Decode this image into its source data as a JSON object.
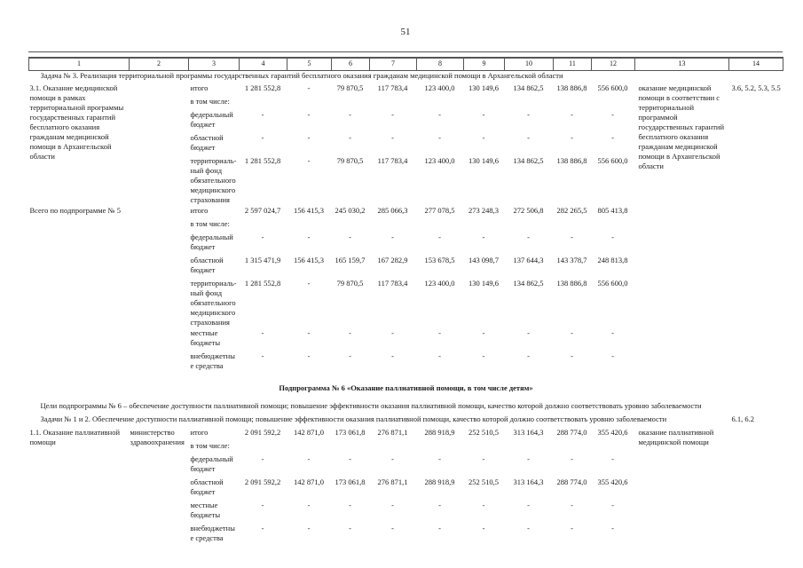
{
  "page": {
    "number": "51"
  },
  "table": {
    "rows": [
      {
        "name": "column-number-row",
        "cls": "hd-row",
        "cells": [
          {
            "t": "1"
          },
          {
            "t": "2"
          },
          {
            "t": "3"
          },
          {
            "t": "4"
          },
          {
            "t": "5"
          },
          {
            "t": "6"
          },
          {
            "t": "7"
          },
          {
            "t": "8"
          },
          {
            "t": "9"
          },
          {
            "t": "10"
          },
          {
            "t": "11"
          },
          {
            "t": "12"
          },
          {
            "t": "13"
          },
          {
            "t": "14"
          }
        ]
      },
      {
        "name": "task-3-row",
        "cells": [
          {
            "t": "Задача № 3. Реализация территориальной программы государственных гарантий бесплатного оказания гражданам медицинской помощи в Архангельской области",
            "colspan": 14,
            "cls": "span-line",
            "n": "task-3-heading"
          }
        ]
      },
      {
        "name": "row-3-1-itogo",
        "cells": [
          {
            "t": "3.1. Оказание медицинской помощи в рамках территориальной программы государственных гарантий бесплатного оказания гражданам медицинской помощи в Архангельской области",
            "rowspan": 5,
            "cls": "c1",
            "n": "measure-3-1-title"
          },
          {
            "t": "",
            "rowspan": 5,
            "n": "executor-cell"
          },
          {
            "t": "итого",
            "cls": "lbl",
            "n": "budget-source-label"
          },
          {
            "t": "1 281 552,8",
            "cls": "num"
          },
          {
            "t": "-",
            "cls": "num"
          },
          {
            "t": "79 870,5",
            "cls": "num"
          },
          {
            "t": "117 783,4",
            "cls": "num"
          },
          {
            "t": "123 400,0",
            "cls": "num"
          },
          {
            "t": "130 149,6",
            "cls": "num"
          },
          {
            "t": "134 862,5",
            "cls": "num"
          },
          {
            "t": "138 886,8",
            "cls": "num"
          },
          {
            "t": "556 600,0",
            "cls": "num"
          },
          {
            "t": "оказание медицинской помощи в соответствии с территориальной программой государственных гарантий бесплатного оказания гражданам медицинской помощи в Архангельской области",
            "rowspan": 5,
            "cls": "c13",
            "n": "expected-result-cell"
          },
          {
            "t": "3.6, 5.2, 5.3, 5.5",
            "rowspan": 5,
            "cls": "c14",
            "n": "indicator-ref-cell"
          }
        ]
      },
      {
        "name": "row-3-1-including",
        "cells": [
          {
            "t": "в том числе:",
            "cls": "lbl",
            "n": "budget-source-label"
          }
        ]
      },
      {
        "name": "row-3-1-federal",
        "cells": [
          {
            "t": "федеральный бюджет",
            "cls": "lbl",
            "n": "budget-source-label"
          },
          {
            "t": "-",
            "cls": "num"
          },
          {
            "t": "-",
            "cls": "num"
          },
          {
            "t": "-",
            "cls": "num"
          },
          {
            "t": "-",
            "cls": "num"
          },
          {
            "t": "-",
            "cls": "num"
          },
          {
            "t": "-",
            "cls": "num"
          },
          {
            "t": "-",
            "cls": "num"
          },
          {
            "t": "-",
            "cls": "num"
          },
          {
            "t": "-",
            "cls": "num"
          }
        ]
      },
      {
        "name": "row-3-1-oblast",
        "cells": [
          {
            "t": "областной бюджет",
            "cls": "lbl",
            "n": "budget-source-label"
          },
          {
            "t": "-",
            "cls": "num"
          },
          {
            "t": "-",
            "cls": "num"
          },
          {
            "t": "-",
            "cls": "num"
          },
          {
            "t": "-",
            "cls": "num"
          },
          {
            "t": "-",
            "cls": "num"
          },
          {
            "t": "-",
            "cls": "num"
          },
          {
            "t": "-",
            "cls": "num"
          },
          {
            "t": "-",
            "cls": "num"
          },
          {
            "t": "-",
            "cls": "num"
          }
        ]
      },
      {
        "name": "row-3-1-terr-fund",
        "cls": "tight",
        "cells": [
          {
            "t": "территориаль-ный фонд обязательного медицинского страхования",
            "cls": "lbl",
            "n": "budget-source-label"
          },
          {
            "t": "1 281 552,8",
            "cls": "num"
          },
          {
            "t": "-",
            "cls": "num"
          },
          {
            "t": "79 870,5",
            "cls": "num"
          },
          {
            "t": "117 783,4",
            "cls": "num"
          },
          {
            "t": "123 400,0",
            "cls": "num"
          },
          {
            "t": "130 149,6",
            "cls": "num"
          },
          {
            "t": "134 862,5",
            "cls": "num"
          },
          {
            "t": "138 886,8",
            "cls": "num"
          },
          {
            "t": "556 600,0",
            "cls": "num"
          }
        ]
      },
      {
        "name": "row-total-5-itogo",
        "cells": [
          {
            "t": "Всего по подпрограмме № 5",
            "rowspan": 7,
            "colspan": 2,
            "cls": "c1 nowrap1",
            "n": "subprogram-5-total-title"
          },
          {
            "t": "итого",
            "cls": "lbl",
            "n": "budget-source-label"
          },
          {
            "t": "2 597 024,7",
            "cls": "num"
          },
          {
            "t": "156 415,3",
            "cls": "num"
          },
          {
            "t": "245 030,2",
            "cls": "num"
          },
          {
            "t": "285 066,3",
            "cls": "num"
          },
          {
            "t": "277 078,5",
            "cls": "num"
          },
          {
            "t": "273 248,3",
            "cls": "num"
          },
          {
            "t": "272 506,8",
            "cls": "num"
          },
          {
            "t": "282 265,5",
            "cls": "num"
          },
          {
            "t": "805 413,8",
            "cls": "num"
          },
          {
            "t": "",
            "rowspan": 7,
            "cls": "c13",
            "n": "expected-result-cell"
          },
          {
            "t": "",
            "rowspan": 7,
            "cls": "c14",
            "n": "indicator-ref-cell"
          }
        ]
      },
      {
        "name": "row-total-5-including",
        "cells": [
          {
            "t": "в том числе:",
            "cls": "lbl",
            "n": "budget-source-label"
          }
        ]
      },
      {
        "name": "row-total-5-federal",
        "cells": [
          {
            "t": "федеральный бюджет",
            "cls": "lbl",
            "n": "budget-source-label"
          },
          {
            "t": "-",
            "cls": "num"
          },
          {
            "t": "-",
            "cls": "num"
          },
          {
            "t": "-",
            "cls": "num"
          },
          {
            "t": "-",
            "cls": "num"
          },
          {
            "t": "-",
            "cls": "num"
          },
          {
            "t": "-",
            "cls": "num"
          },
          {
            "t": "-",
            "cls": "num"
          },
          {
            "t": "-",
            "cls": "num"
          },
          {
            "t": "-",
            "cls": "num"
          }
        ]
      },
      {
        "name": "row-total-5-oblast",
        "cells": [
          {
            "t": "областной бюджет",
            "cls": "lbl",
            "n": "budget-source-label"
          },
          {
            "t": "1 315 471,9",
            "cls": "num"
          },
          {
            "t": "156 415,3",
            "cls": "num"
          },
          {
            "t": "165 159,7",
            "cls": "num"
          },
          {
            "t": "167 282,9",
            "cls": "num"
          },
          {
            "t": "153 678,5",
            "cls": "num"
          },
          {
            "t": "143 098,7",
            "cls": "num"
          },
          {
            "t": "137 644,3",
            "cls": "num"
          },
          {
            "t": "143 378,7",
            "cls": "num"
          },
          {
            "t": "248 813,8",
            "cls": "num"
          }
        ]
      },
      {
        "name": "row-total-5-terr-fund",
        "cls": "tight",
        "cells": [
          {
            "t": "территориаль-ный фонд обязательного медицинского страхования",
            "cls": "lbl",
            "n": "budget-source-label"
          },
          {
            "t": "1 281 552,8",
            "cls": "num"
          },
          {
            "t": "-",
            "cls": "num"
          },
          {
            "t": "79 870,5",
            "cls": "num"
          },
          {
            "t": "117 783,4",
            "cls": "num"
          },
          {
            "t": "123 400,0",
            "cls": "num"
          },
          {
            "t": "130 149,6",
            "cls": "num"
          },
          {
            "t": "134 862,5",
            "cls": "num"
          },
          {
            "t": "138 886,8",
            "cls": "num"
          },
          {
            "t": "556 600,0",
            "cls": "num"
          }
        ]
      },
      {
        "name": "row-total-5-local",
        "cells": [
          {
            "t": "местные бюджеты",
            "cls": "lbl",
            "n": "budget-source-label"
          },
          {
            "t": "-",
            "cls": "num"
          },
          {
            "t": "-",
            "cls": "num"
          },
          {
            "t": "-",
            "cls": "num"
          },
          {
            "t": "-",
            "cls": "num"
          },
          {
            "t": "-",
            "cls": "num"
          },
          {
            "t": "-",
            "cls": "num"
          },
          {
            "t": "-",
            "cls": "num"
          },
          {
            "t": "-",
            "cls": "num"
          },
          {
            "t": "-",
            "cls": "num"
          }
        ]
      },
      {
        "name": "row-total-5-extrabudget",
        "cells": [
          {
            "t": "внебюджетные средства",
            "cls": "lbl",
            "n": "budget-source-label"
          },
          {
            "t": "-",
            "cls": "num"
          },
          {
            "t": "-",
            "cls": "num"
          },
          {
            "t": "-",
            "cls": "num"
          },
          {
            "t": "-",
            "cls": "num"
          },
          {
            "t": "-",
            "cls": "num"
          },
          {
            "t": "-",
            "cls": "num"
          },
          {
            "t": "-",
            "cls": "num"
          },
          {
            "t": "-",
            "cls": "num"
          },
          {
            "t": "-",
            "cls": "num"
          }
        ]
      },
      {
        "name": "subprogram-6-heading-row",
        "cells": [
          {
            "t": "Подпрограмма № 6 «Оказание паллиативной помощи, в том числе детям»",
            "colspan": 14,
            "cls": "subhead",
            "n": "subprogram-6-heading"
          }
        ]
      },
      {
        "name": "goals-6-row",
        "cells": [
          {
            "t": "Цели подпрограммы № 6 – обеспечение доступности паллиативной помощи; повышение эффективности оказания паллиативной помощи, качество которой должно соответствовать уровню заболеваемости",
            "colspan": 14,
            "cls": "goals",
            "n": "subprogram-6-goals"
          }
        ]
      },
      {
        "name": "tasks-1-2-row",
        "cells": [
          {
            "t": "Задачи № 1 и 2. Обеспечение доступности паллиативной помощи; повышение эффективности оказания паллиативной помощи, качество которой должно соответствовать уровню заболеваемости",
            "colspan": 13,
            "cls": "goals",
            "n": "tasks-1-2-heading"
          },
          {
            "t": "6.1, 6.2",
            "cls": "c14",
            "n": "indicator-ref-cell"
          }
        ]
      },
      {
        "name": "row-1-1-itogo",
        "cells": [
          {
            "t": "1.1.  Оказание паллиативной помощи",
            "rowspan": 6,
            "cls": "c1",
            "n": "measure-1-1-title"
          },
          {
            "t": "министерство здравоохранения",
            "rowspan": 6,
            "n": "executor-cell"
          },
          {
            "t": "итого",
            "cls": "lbl",
            "n": "budget-source-label"
          },
          {
            "t": "2 091 592,2",
            "cls": "num"
          },
          {
            "t": "142 871,0",
            "cls": "num"
          },
          {
            "t": "173 061,8",
            "cls": "num"
          },
          {
            "t": "276 871,1",
            "cls": "num"
          },
          {
            "t": "288 918,9",
            "cls": "num"
          },
          {
            "t": "252 510,5",
            "cls": "num"
          },
          {
            "t": "313 164,3",
            "cls": "num"
          },
          {
            "t": "288 774,0",
            "cls": "num"
          },
          {
            "t": "355 420,6",
            "cls": "num"
          },
          {
            "t": "оказание паллиативной медицинской помощи",
            "rowspan": 6,
            "cls": "c13",
            "n": "expected-result-cell"
          },
          {
            "t": "",
            "rowspan": 6,
            "cls": "c14",
            "n": "indicator-ref-cell"
          }
        ]
      },
      {
        "name": "row-1-1-including",
        "cells": [
          {
            "t": "в том числе:",
            "cls": "lbl",
            "n": "budget-source-label"
          }
        ]
      },
      {
        "name": "row-1-1-federal",
        "cells": [
          {
            "t": "федеральный бюджет",
            "cls": "lbl",
            "n": "budget-source-label"
          },
          {
            "t": "-",
            "cls": "num"
          },
          {
            "t": "-",
            "cls": "num"
          },
          {
            "t": "-",
            "cls": "num"
          },
          {
            "t": "-",
            "cls": "num"
          },
          {
            "t": "-",
            "cls": "num"
          },
          {
            "t": "-",
            "cls": "num"
          },
          {
            "t": "-",
            "cls": "num"
          },
          {
            "t": "-",
            "cls": "num"
          },
          {
            "t": "-",
            "cls": "num"
          }
        ]
      },
      {
        "name": "row-1-1-oblast",
        "cells": [
          {
            "t": "областной бюджет",
            "cls": "lbl",
            "n": "budget-source-label"
          },
          {
            "t": "2 091 592,2",
            "cls": "num"
          },
          {
            "t": "142 871,0",
            "cls": "num"
          },
          {
            "t": "173 061,8",
            "cls": "num"
          },
          {
            "t": "276 871,1",
            "cls": "num"
          },
          {
            "t": "288 918,9",
            "cls": "num"
          },
          {
            "t": "252 510,5",
            "cls": "num"
          },
          {
            "t": "313 164,3",
            "cls": "num"
          },
          {
            "t": "288 774,0",
            "cls": "num"
          },
          {
            "t": "355 420,6",
            "cls": "num"
          }
        ]
      },
      {
        "name": "row-1-1-local",
        "cells": [
          {
            "t": "местные бюджеты",
            "cls": "lbl",
            "n": "budget-source-label"
          },
          {
            "t": "-",
            "cls": "num"
          },
          {
            "t": "-",
            "cls": "num"
          },
          {
            "t": "-",
            "cls": "num"
          },
          {
            "t": "-",
            "cls": "num"
          },
          {
            "t": "-",
            "cls": "num"
          },
          {
            "t": "-",
            "cls": "num"
          },
          {
            "t": "-",
            "cls": "num"
          },
          {
            "t": "-",
            "cls": "num"
          },
          {
            "t": "-",
            "cls": "num"
          }
        ]
      },
      {
        "name": "row-1-1-extrabudget",
        "cells": [
          {
            "t": "внебюджетные средства",
            "cls": "lbl",
            "n": "budget-source-label"
          },
          {
            "t": "-",
            "cls": "num"
          },
          {
            "t": "-",
            "cls": "num"
          },
          {
            "t": "-",
            "cls": "num"
          },
          {
            "t": "-",
            "cls": "num"
          },
          {
            "t": "-",
            "cls": "num"
          },
          {
            "t": "-",
            "cls": "num"
          },
          {
            "t": "-",
            "cls": "num"
          },
          {
            "t": "-",
            "cls": "num"
          },
          {
            "t": "-",
            "cls": "num"
          }
        ]
      }
    ]
  }
}
